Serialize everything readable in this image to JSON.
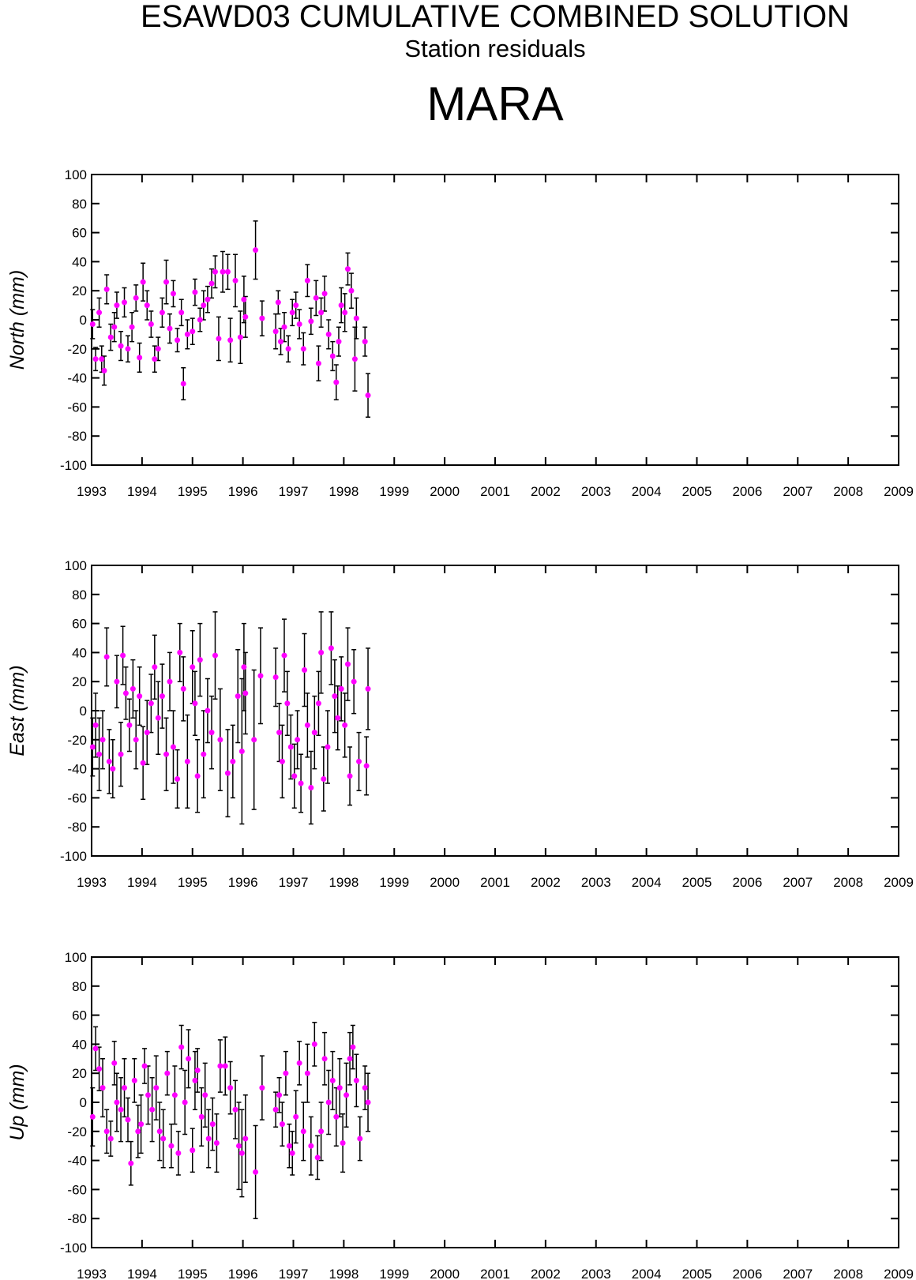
{
  "title": "ESAWD03 CUMULATIVE COMBINED SOLUTION",
  "subtitle": "Station residuals",
  "station": "MARA",
  "chart_data": [
    {
      "type": "scatter",
      "ylabel": "North (mm)",
      "color": "#ff00ff",
      "errorcolor": "#000000",
      "xlim": [
        1993,
        2009
      ],
      "xticks": [
        1993,
        1994,
        1995,
        1996,
        1997,
        1998,
        1999,
        2000,
        2001,
        2002,
        2003,
        2004,
        2005,
        2006,
        2007,
        2008,
        2009
      ],
      "ylim": [
        -100,
        100
      ],
      "yticks": [
        -100,
        -80,
        -60,
        -40,
        -20,
        0,
        20,
        40,
        60,
        80,
        100
      ],
      "x": [
        1993.02,
        1993.08,
        1993.15,
        1993.2,
        1993.25,
        1993.3,
        1993.38,
        1993.45,
        1993.5,
        1993.58,
        1993.65,
        1993.72,
        1993.8,
        1993.88,
        1993.95,
        1994.02,
        1994.1,
        1994.18,
        1994.25,
        1994.32,
        1994.4,
        1994.48,
        1994.55,
        1994.62,
        1994.7,
        1994.78,
        1994.82,
        1994.9,
        1995.0,
        1995.05,
        1995.15,
        1995.22,
        1995.3,
        1995.38,
        1995.45,
        1995.52,
        1995.6,
        1995.7,
        1995.75,
        1995.85,
        1995.95,
        1996.02,
        1996.05,
        1996.25,
        1996.38,
        1996.65,
        1996.7,
        1996.75,
        1996.82,
        1996.9,
        1996.98,
        1997.05,
        1997.12,
        1997.2,
        1997.28,
        1997.35,
        1997.45,
        1997.5,
        1997.55,
        1997.62,
        1997.7,
        1997.78,
        1997.85,
        1997.9,
        1997.95,
        1998.02,
        1998.08,
        1998.15,
        1998.22,
        1998.25,
        1998.42,
        1998.48
      ],
      "values": [
        -3,
        -27,
        5,
        -27,
        -35,
        21,
        -12,
        -5,
        10,
        -18,
        12,
        -20,
        -5,
        15,
        -26,
        26,
        10,
        -3,
        -27,
        -20,
        5,
        26,
        -6,
        18,
        -14,
        5,
        -44,
        -10,
        -8,
        19,
        0,
        10,
        14,
        25,
        33,
        -13,
        33,
        33,
        -14,
        27,
        -12,
        14,
        2,
        48,
        1,
        -8,
        12,
        -15,
        -5,
        -20,
        5,
        10,
        -3,
        -20,
        27,
        -1,
        15,
        -30,
        5,
        18,
        -10,
        -25,
        -43,
        -15,
        10,
        5,
        35,
        20,
        -27,
        1,
        -15,
        -52
      ],
      "errors": [
        10,
        8,
        10,
        9,
        10,
        10,
        9,
        10,
        9,
        10,
        10,
        9,
        10,
        9,
        10,
        13,
        10,
        9,
        9,
        8,
        10,
        15,
        10,
        9,
        8,
        9,
        11,
        10,
        9,
        9,
        8,
        10,
        9,
        10,
        11,
        15,
        14,
        12,
        15,
        18,
        18,
        16,
        14,
        20,
        12,
        12,
        8,
        9,
        10,
        9,
        9,
        9,
        10,
        11,
        11,
        9,
        12,
        12,
        10,
        12,
        10,
        10,
        12,
        10,
        12,
        13,
        11,
        12,
        22,
        14,
        10,
        15
      ]
    },
    {
      "type": "scatter",
      "ylabel": "East (mm)",
      "color": "#ff00ff",
      "errorcolor": "#000000",
      "xlim": [
        1993,
        2009
      ],
      "xticks": [
        1993,
        1994,
        1995,
        1996,
        1997,
        1998,
        1999,
        2000,
        2001,
        2002,
        2003,
        2004,
        2005,
        2006,
        2007,
        2008,
        2009
      ],
      "ylim": [
        -100,
        100
      ],
      "yticks": [
        -100,
        -80,
        -60,
        -40,
        -20,
        0,
        20,
        40,
        60,
        80,
        100
      ],
      "x": [
        1993.02,
        1993.08,
        1993.15,
        1993.22,
        1993.3,
        1993.35,
        1993.42,
        1993.5,
        1993.58,
        1993.62,
        1993.68,
        1993.75,
        1993.82,
        1993.88,
        1993.95,
        1994.02,
        1994.1,
        1994.18,
        1994.25,
        1994.32,
        1994.4,
        1994.48,
        1994.55,
        1994.62,
        1994.7,
        1994.75,
        1994.82,
        1994.9,
        1995.0,
        1995.05,
        1995.1,
        1995.15,
        1995.22,
        1995.3,
        1995.38,
        1995.45,
        1995.55,
        1995.7,
        1995.8,
        1995.9,
        1995.98,
        1996.02,
        1996.05,
        1996.22,
        1996.35,
        1996.65,
        1996.72,
        1996.78,
        1996.82,
        1996.88,
        1996.95,
        1997.02,
        1997.08,
        1997.15,
        1997.22,
        1997.28,
        1997.35,
        1997.42,
        1997.5,
        1997.55,
        1997.6,
        1997.68,
        1997.75,
        1997.82,
        1997.88,
        1997.95,
        1998.02,
        1998.08,
        1998.12,
        1998.2,
        1998.3,
        1998.45,
        1998.48
      ],
      "values": [
        -25,
        -10,
        -30,
        -20,
        37,
        -35,
        -40,
        20,
        -30,
        38,
        12,
        -10,
        15,
        -20,
        10,
        -36,
        -15,
        5,
        30,
        -5,
        10,
        -30,
        20,
        -25,
        -47,
        40,
        15,
        -35,
        30,
        5,
        -45,
        35,
        -30,
        0,
        -15,
        38,
        -20,
        -43,
        -35,
        10,
        -28,
        30,
        12,
        -20,
        24,
        23,
        -15,
        -35,
        38,
        5,
        -25,
        -45,
        -20,
        -50,
        28,
        -10,
        -53,
        -15,
        5,
        40,
        -47,
        -25,
        43,
        10,
        -5,
        15,
        -10,
        32,
        -45,
        20,
        -35,
        -38,
        15
      ],
      "errors": [
        20,
        22,
        25,
        20,
        20,
        22,
        20,
        18,
        22,
        20,
        18,
        18,
        20,
        20,
        20,
        25,
        22,
        20,
        22,
        25,
        22,
        25,
        20,
        25,
        20,
        20,
        22,
        32,
        25,
        22,
        25,
        25,
        30,
        22,
        25,
        30,
        35,
        30,
        25,
        32,
        50,
        30,
        28,
        48,
        33,
        20,
        20,
        25,
        25,
        22,
        22,
        22,
        20,
        20,
        25,
        22,
        25,
        25,
        22,
        28,
        22,
        25,
        25,
        25,
        22,
        22,
        22,
        25,
        20,
        22,
        20,
        20,
        28
      ]
    },
    {
      "type": "scatter",
      "ylabel": "Up (mm)",
      "color": "#ff00ff",
      "errorcolor": "#000000",
      "xlim": [
        1993,
        2009
      ],
      "xticks": [
        1993,
        1994,
        1995,
        1996,
        1997,
        1998,
        1999,
        2000,
        2001,
        2002,
        2003,
        2004,
        2005,
        2006,
        2007,
        2008,
        2009
      ],
      "ylim": [
        -100,
        100
      ],
      "yticks": [
        -100,
        -80,
        -60,
        -40,
        -20,
        0,
        20,
        40,
        60,
        80,
        100
      ],
      "x": [
        1993.02,
        1993.08,
        1993.15,
        1993.22,
        1993.3,
        1993.38,
        1993.45,
        1993.5,
        1993.58,
        1993.65,
        1993.72,
        1993.78,
        1993.85,
        1993.92,
        1993.98,
        1994.05,
        1994.12,
        1994.2,
        1994.28,
        1994.35,
        1994.42,
        1994.5,
        1994.58,
        1994.65,
        1994.72,
        1994.78,
        1994.85,
        1994.92,
        1995.0,
        1995.05,
        1995.1,
        1995.18,
        1995.25,
        1995.32,
        1995.4,
        1995.48,
        1995.55,
        1995.65,
        1995.75,
        1995.85,
        1995.92,
        1995.98,
        1996.05,
        1996.25,
        1996.38,
        1996.65,
        1996.72,
        1996.78,
        1996.85,
        1996.92,
        1996.98,
        1997.05,
        1997.12,
        1997.2,
        1997.28,
        1997.35,
        1997.42,
        1997.48,
        1997.55,
        1997.62,
        1997.7,
        1997.78,
        1997.85,
        1997.92,
        1997.98,
        1998.05,
        1998.12,
        1998.18,
        1998.25,
        1998.32,
        1998.42,
        1998.48
      ],
      "values": [
        -10,
        37,
        23,
        10,
        -20,
        -25,
        27,
        0,
        -5,
        10,
        -12,
        -42,
        15,
        -20,
        -15,
        25,
        5,
        -5,
        10,
        -20,
        -25,
        20,
        -30,
        5,
        -35,
        38,
        0,
        30,
        -33,
        15,
        22,
        -10,
        5,
        -25,
        -15,
        -28,
        25,
        25,
        10,
        -5,
        -30,
        -35,
        -25,
        -48,
        10,
        -5,
        5,
        -15,
        20,
        -30,
        -35,
        -10,
        27,
        -20,
        20,
        -30,
        40,
        -38,
        -20,
        30,
        0,
        15,
        -10,
        10,
        -28,
        5,
        30,
        38,
        15,
        -25,
        10,
        0
      ],
      "errors": [
        20,
        15,
        15,
        20,
        15,
        12,
        15,
        20,
        22,
        20,
        15,
        15,
        15,
        18,
        20,
        12,
        20,
        22,
        22,
        20,
        20,
        15,
        15,
        20,
        15,
        15,
        22,
        20,
        15,
        20,
        15,
        20,
        22,
        20,
        18,
        20,
        18,
        20,
        18,
        20,
        30,
        30,
        30,
        32,
        22,
        12,
        12,
        15,
        15,
        15,
        15,
        18,
        15,
        20,
        20,
        20,
        15,
        15,
        20,
        18,
        22,
        20,
        20,
        20,
        20,
        22,
        18,
        15,
        18,
        15,
        15,
        20
      ]
    }
  ]
}
